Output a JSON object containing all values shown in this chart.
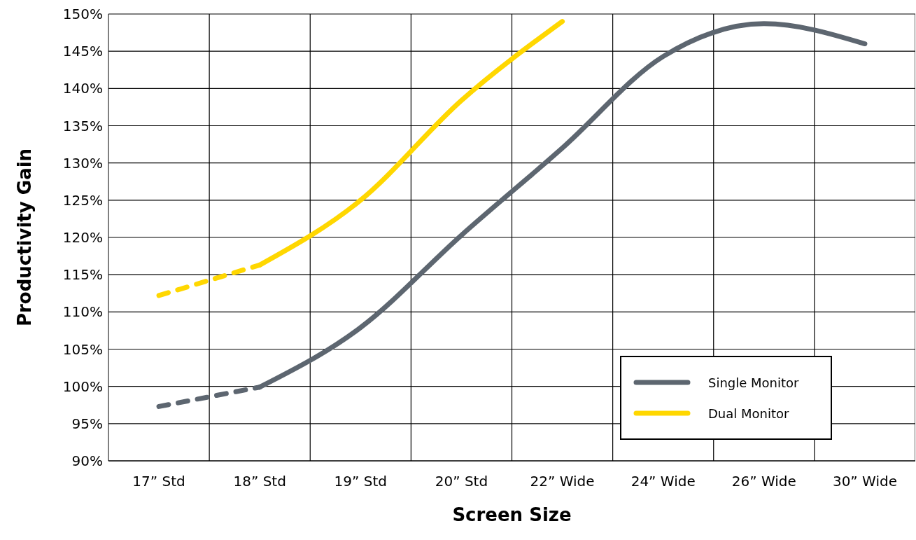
{
  "chart_data": {
    "type": "line",
    "xlabel": "Screen Size",
    "ylabel": "Productivity Gain",
    "categories": [
      "17” Std",
      "18” Std",
      "19” Std",
      "20” Std",
      "22” Wide",
      "24” Wide",
      "26” Wide",
      "30” Wide"
    ],
    "series": [
      {
        "name": "Single Monitor",
        "color": "#5d6670",
        "line_style": "solid",
        "values": [
          null,
          99.9,
          107.9,
          120.3,
          132,
          144.3,
          148.7,
          146
        ]
      },
      {
        "color": "#5d6670",
        "line_style": "dashed",
        "values": [
          97.3,
          99.9,
          null,
          null,
          null,
          null,
          null,
          null
        ]
      },
      {
        "name": "Dual Monitor",
        "color": "#ffd700",
        "line_style": "solid",
        "values": [
          null,
          116.3,
          125,
          138.4,
          149,
          null,
          null,
          null
        ]
      },
      {
        "color": "#ffd700",
        "line_style": "dashed",
        "values": [
          112.2,
          116.3,
          null,
          null,
          null,
          null,
          null,
          null
        ]
      }
    ],
    "ylim": [
      90,
      150
    ],
    "yticks": [
      {
        "value": 90,
        "label": "90%"
      },
      {
        "value": 95,
        "label": "95%"
      },
      {
        "value": 100,
        "label": "100%"
      },
      {
        "value": 105,
        "label": "105%"
      },
      {
        "value": 110,
        "label": "110%"
      },
      {
        "value": 115,
        "label": "115%"
      },
      {
        "value": 120,
        "label": "120%"
      },
      {
        "value": 125,
        "label": "125%"
      },
      {
        "value": 130,
        "label": "130%"
      },
      {
        "value": 135,
        "label": "135%"
      },
      {
        "value": 140,
        "label": "140%"
      },
      {
        "value": 145,
        "label": "145%"
      },
      {
        "value": 150,
        "label": "150%"
      }
    ],
    "grid": true,
    "legend": "bottom right",
    "marker": "none"
  }
}
